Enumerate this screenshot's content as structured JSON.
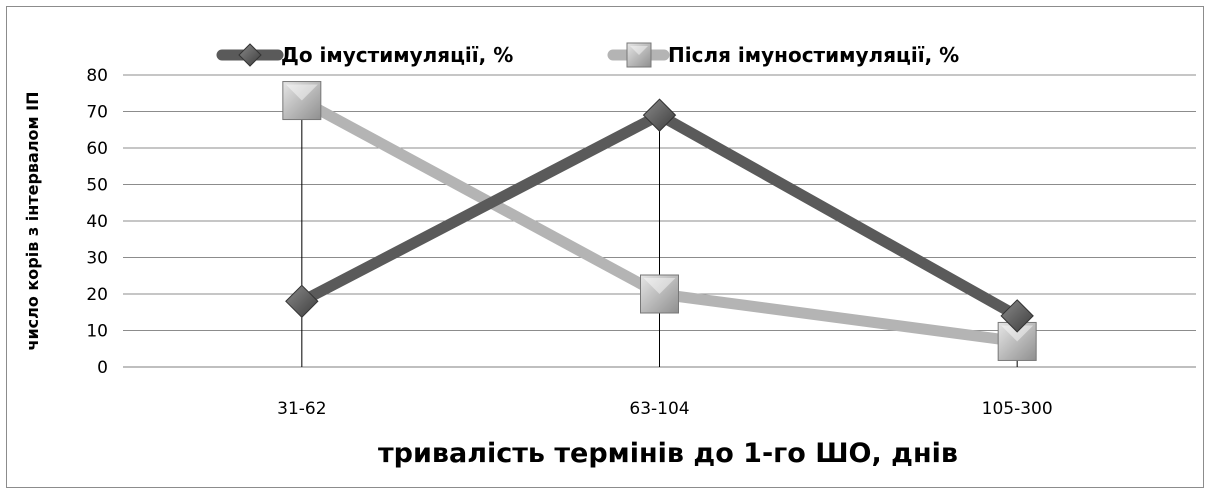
{
  "chart_data": {
    "type": "line",
    "title": "",
    "xlabel": "тривалість термінів до 1-го ШО, днів",
    "ylabel": "число корів з  інтервалом ІП",
    "categories": [
      "31-62",
      "63-104",
      "105-300"
    ],
    "ylim": [
      0,
      80
    ],
    "yticks": [
      0,
      10,
      20,
      30,
      40,
      50,
      60,
      70,
      80
    ],
    "grid": true,
    "legend": "top",
    "series": [
      {
        "name": "До імустимуляції, %",
        "values": [
          18,
          69,
          14
        ],
        "color": "#5a5a5a",
        "marker": "diamond"
      },
      {
        "name": "Після імуностимуляції, %",
        "values": [
          73,
          20,
          7
        ],
        "color": "#b4b4b4",
        "marker": "square"
      }
    ],
    "drop_lines": true
  }
}
